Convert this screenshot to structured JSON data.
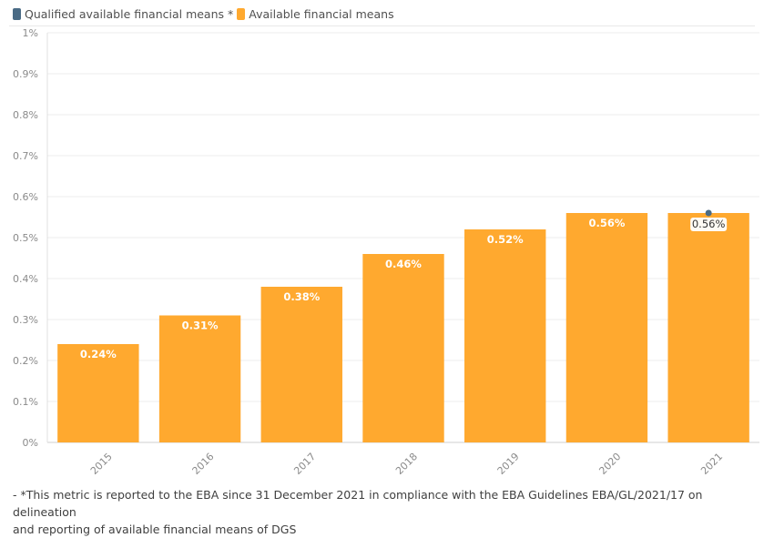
{
  "legend": {
    "qualified_label": "Qualified available financial means *",
    "available_label": "Available financial means",
    "qualified_color": "#4a6b85",
    "available_color": "#ffa92f"
  },
  "footnote": {
    "line1": "- *This metric is reported to the EBA since 31 December 2021 in compliance with the EBA Guidelines EBA/GL/2021/17 on delineation",
    "line2": "and reporting of available financial means of DGS"
  },
  "chart_data": {
    "type": "bar",
    "categories": [
      "2015",
      "2016",
      "2017",
      "2018",
      "2019",
      "2020",
      "2021"
    ],
    "series": [
      {
        "name": "Available financial means",
        "type": "bar",
        "color": "#ffa92f",
        "values": [
          0.24,
          0.31,
          0.38,
          0.46,
          0.52,
          0.56,
          0.56
        ],
        "labels": [
          "0.24%",
          "0.31%",
          "0.38%",
          "0.46%",
          "0.52%",
          "0.56%",
          ""
        ]
      },
      {
        "name": "Qualified available financial means *",
        "type": "marker",
        "color": "#4a6b85",
        "values": [
          null,
          null,
          null,
          null,
          null,
          null,
          0.56
        ],
        "labels": [
          "",
          "",
          "",
          "",
          "",
          "",
          "0.56%"
        ]
      }
    ],
    "yticks": [
      "0%",
      "0.1%",
      "0.2%",
      "0.3%",
      "0.4%",
      "0.5%",
      "0.6%",
      "0.7%",
      "0.8%",
      "0.9%",
      "1%"
    ],
    "ylim": [
      0,
      1
    ],
    "grid": true,
    "legend_position": "top-left"
  }
}
